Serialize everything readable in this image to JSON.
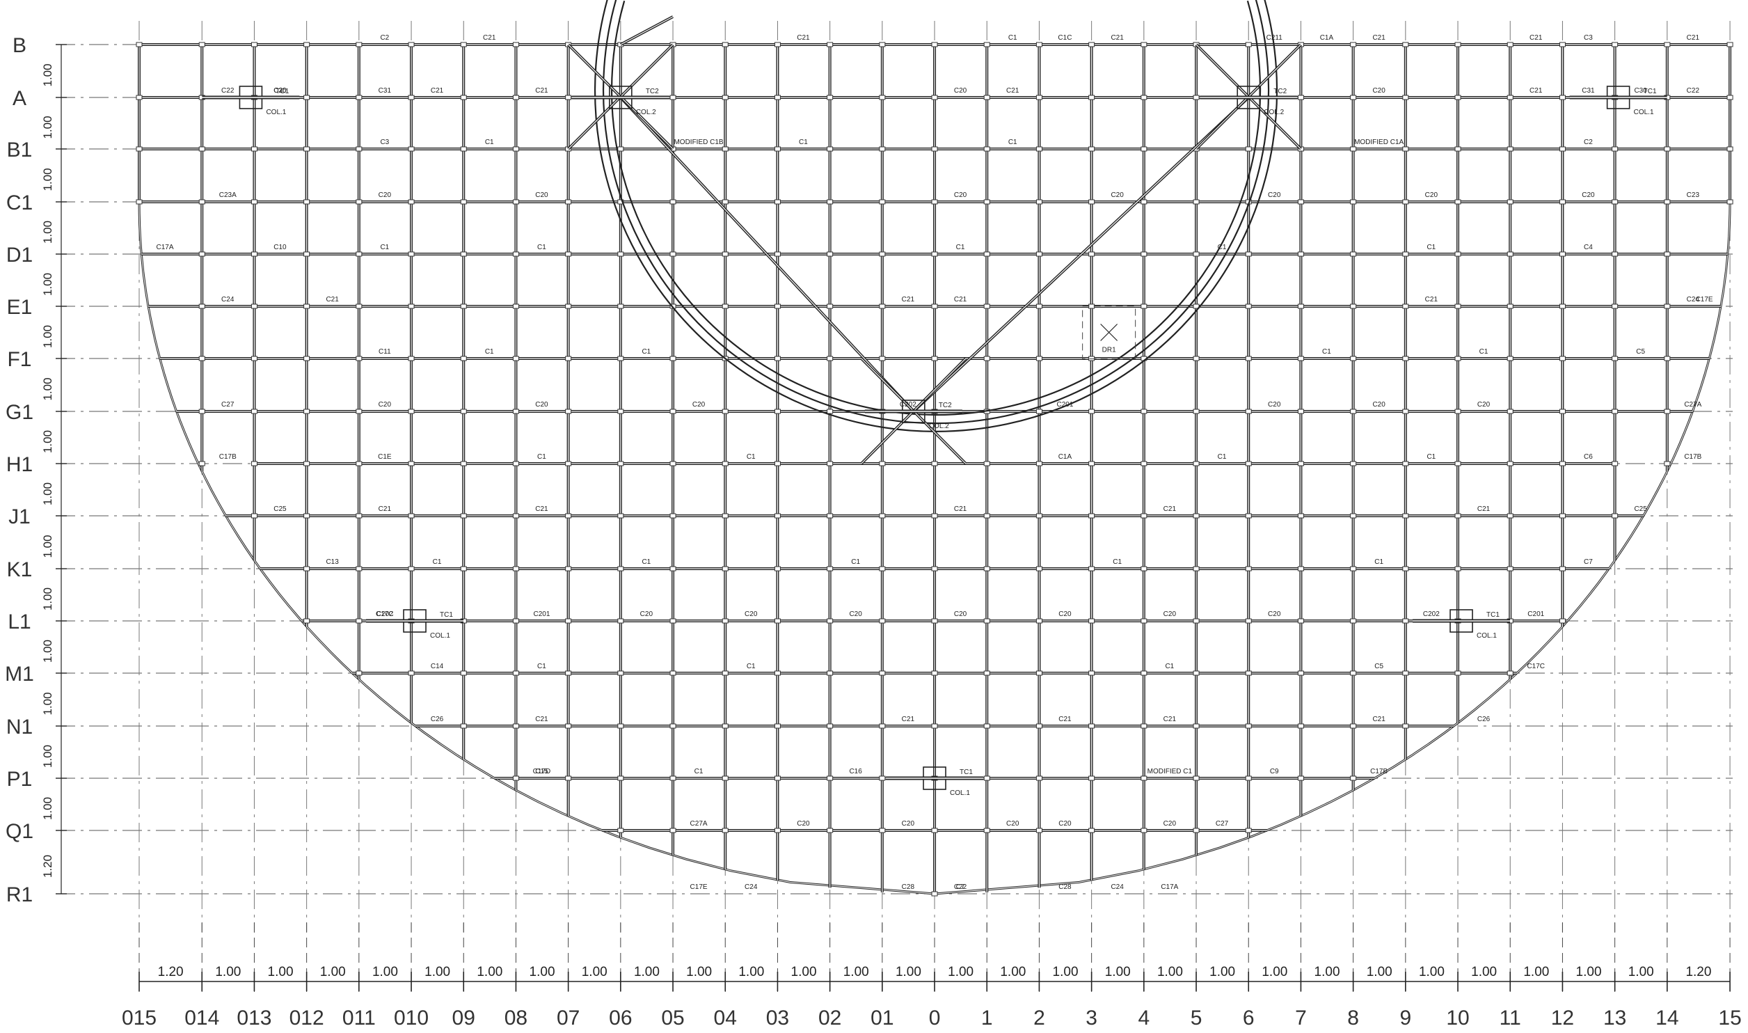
{
  "drawing": {
    "row_labels": [
      "B",
      "A",
      "B1",
      "C1",
      "D1",
      "E1",
      "F1",
      "G1",
      "H1",
      "J1",
      "K1",
      "L1",
      "M1",
      "N1",
      "P1",
      "Q1",
      "R1"
    ],
    "row_spacings": [
      "1.00",
      "1.00",
      "1.00",
      "1.00",
      "1.00",
      "1.00",
      "1.00",
      "1.00",
      "1.00",
      "1.00",
      "1.00",
      "1.00",
      "1.00",
      "1.00",
      "1.00",
      "1.20"
    ],
    "col_labels": [
      "015",
      "014",
      "013",
      "012",
      "011",
      "010",
      "09",
      "08",
      "07",
      "06",
      "05",
      "04",
      "03",
      "02",
      "01",
      "0",
      "1",
      "2",
      "3",
      "4",
      "5",
      "6",
      "7",
      "8",
      "9",
      "10",
      "11",
      "12",
      "13",
      "14",
      "15"
    ],
    "col_spacings": [
      "1.20",
      "1.00",
      "1.00",
      "1.00",
      "1.00",
      "1.00",
      "1.00",
      "1.00",
      "1.00",
      "1.00",
      "1.00",
      "1.00",
      "1.00",
      "1.00",
      "1.00",
      "1.00",
      "1.00",
      "1.00",
      "1.00",
      "1.00",
      "1.00",
      "1.00",
      "1.00",
      "1.00",
      "1.00",
      "1.00",
      "1.00",
      "1.00",
      "1.00",
      "1.20"
    ],
    "columns_marked": [
      {
        "label": "COL.1",
        "tag": "TC1"
      },
      {
        "label": "COL.2",
        "tag": "TC2"
      }
    ],
    "drop_marker": "DR1",
    "member_labels": [
      {
        "text": "C21",
        "row": "B",
        "col": "03"
      },
      {
        "text": "C21",
        "row": "B",
        "col": "09"
      },
      {
        "text": "C1",
        "row": "B",
        "col": "1"
      },
      {
        "text": "C1C",
        "row": "B",
        "col": "2"
      },
      {
        "text": "C21",
        "row": "B",
        "col": "3"
      },
      {
        "text": "C211",
        "row": "B",
        "col": "6"
      },
      {
        "text": "C1A",
        "row": "B",
        "col": "7"
      },
      {
        "text": "C21",
        "row": "B",
        "col": "8"
      },
      {
        "text": "C21",
        "row": "B",
        "col": "11"
      },
      {
        "text": "C3",
        "row": "B",
        "col": "12"
      },
      {
        "text": "C21",
        "row": "B",
        "col": "14"
      },
      {
        "text": "C2",
        "row": "B",
        "col": "011"
      },
      {
        "text": "C20",
        "row": "A",
        "col": "013"
      },
      {
        "text": "C22",
        "row": "A",
        "col": "014"
      },
      {
        "text": "C30",
        "row": "A",
        "col": "013"
      },
      {
        "text": "C31",
        "row": "A",
        "col": "011"
      },
      {
        "text": "C21",
        "row": "A",
        "col": "010"
      },
      {
        "text": "C21",
        "row": "A",
        "col": "08"
      },
      {
        "text": "C20",
        "row": "A",
        "col": "0"
      },
      {
        "text": "C21",
        "row": "A",
        "col": "1"
      },
      {
        "text": "C20",
        "row": "A",
        "col": "8"
      },
      {
        "text": "C21",
        "row": "A",
        "col": "11"
      },
      {
        "text": "C31",
        "row": "A",
        "col": "12"
      },
      {
        "text": "C30",
        "row": "A",
        "col": "13"
      },
      {
        "text": "C22",
        "row": "A",
        "col": "14"
      },
      {
        "text": "C3",
        "row": "B1",
        "col": "011"
      },
      {
        "text": "C1",
        "row": "B1",
        "col": "09"
      },
      {
        "text": "C1",
        "row": "B1",
        "col": "03"
      },
      {
        "text": "C1",
        "row": "B1",
        "col": "1"
      },
      {
        "text": "C2",
        "row": "B1",
        "col": "12"
      },
      {
        "text": "MODIFIED C1B",
        "row": "B1",
        "col": "05"
      },
      {
        "text": "MODIFIED C1A",
        "row": "B1",
        "col": "8"
      },
      {
        "text": "C23A",
        "row": "C1",
        "col": "014"
      },
      {
        "text": "C20",
        "row": "C1",
        "col": "011"
      },
      {
        "text": "C20",
        "row": "C1",
        "col": "08"
      },
      {
        "text": "C20",
        "row": "C1",
        "col": "0"
      },
      {
        "text": "C20",
        "row": "C1",
        "col": "3"
      },
      {
        "text": "C20",
        "row": "C1",
        "col": "6"
      },
      {
        "text": "C20",
        "row": "C1",
        "col": "9"
      },
      {
        "text": "C20",
        "row": "C1",
        "col": "12"
      },
      {
        "text": "C23",
        "row": "C1",
        "col": "14"
      },
      {
        "text": "C10",
        "row": "D1",
        "col": "013"
      },
      {
        "text": "C1",
        "row": "D1",
        "col": "011"
      },
      {
        "text": "C1",
        "row": "D1",
        "col": "08"
      },
      {
        "text": "C1",
        "row": "D1",
        "col": "0"
      },
      {
        "text": "C1",
        "row": "D1",
        "col": "5"
      },
      {
        "text": "C1",
        "row": "D1",
        "col": "9"
      },
      {
        "text": "C4",
        "row": "D1",
        "col": "12"
      },
      {
        "text": "C24",
        "row": "E1",
        "col": "014"
      },
      {
        "text": "C21",
        "row": "E1",
        "col": "012"
      },
      {
        "text": "C21",
        "row": "E1",
        "col": "01"
      },
      {
        "text": "C21",
        "row": "E1",
        "col": "0"
      },
      {
        "text": "C21",
        "row": "E1",
        "col": "9"
      },
      {
        "text": "C24",
        "row": "E1",
        "col": "14"
      },
      {
        "text": "C11",
        "row": "F1",
        "col": "011"
      },
      {
        "text": "C1",
        "row": "F1",
        "col": "09"
      },
      {
        "text": "C1",
        "row": "F1",
        "col": "06"
      },
      {
        "text": "C1",
        "row": "F1",
        "col": "7"
      },
      {
        "text": "C1",
        "row": "F1",
        "col": "10"
      },
      {
        "text": "C5",
        "row": "F1",
        "col": "13"
      },
      {
        "text": "C27",
        "row": "G1",
        "col": "014"
      },
      {
        "text": "C20",
        "row": "G1",
        "col": "011"
      },
      {
        "text": "C20",
        "row": "G1",
        "col": "08"
      },
      {
        "text": "C20",
        "row": "G1",
        "col": "05"
      },
      {
        "text": "C202",
        "row": "G1",
        "col": "01"
      },
      {
        "text": "C201",
        "row": "G1",
        "col": "2"
      },
      {
        "text": "C20",
        "row": "G1",
        "col": "6"
      },
      {
        "text": "C20",
        "row": "G1",
        "col": "8"
      },
      {
        "text": "C20",
        "row": "G1",
        "col": "10"
      },
      {
        "text": "C27A",
        "row": "G1",
        "col": "14"
      },
      {
        "text": "C1E",
        "row": "H1",
        "col": "011"
      },
      {
        "text": "C1",
        "row": "H1",
        "col": "08"
      },
      {
        "text": "C1",
        "row": "H1",
        "col": "04"
      },
      {
        "text": "C1A",
        "row": "H1",
        "col": "2"
      },
      {
        "text": "C1",
        "row": "H1",
        "col": "5"
      },
      {
        "text": "C1",
        "row": "H1",
        "col": "9"
      },
      {
        "text": "C6",
        "row": "H1",
        "col": "12"
      },
      {
        "text": "C25",
        "row": "J1",
        "col": "013"
      },
      {
        "text": "C21",
        "row": "J1",
        "col": "011"
      },
      {
        "text": "C21",
        "row": "J1",
        "col": "08"
      },
      {
        "text": "C21",
        "row": "J1",
        "col": "0"
      },
      {
        "text": "C21",
        "row": "J1",
        "col": "4"
      },
      {
        "text": "C21",
        "row": "J1",
        "col": "10"
      },
      {
        "text": "C25",
        "row": "J1",
        "col": "13"
      },
      {
        "text": "C13",
        "row": "K1",
        "col": "012"
      },
      {
        "text": "C1",
        "row": "K1",
        "col": "010"
      },
      {
        "text": "C1",
        "row": "K1",
        "col": "06"
      },
      {
        "text": "C1",
        "row": "K1",
        "col": "02"
      },
      {
        "text": "C1",
        "row": "K1",
        "col": "3"
      },
      {
        "text": "C1",
        "row": "K1",
        "col": "8"
      },
      {
        "text": "C7",
        "row": "K1",
        "col": "12"
      },
      {
        "text": "C202",
        "row": "L1",
        "col": "011"
      },
      {
        "text": "C201",
        "row": "L1",
        "col": "08"
      },
      {
        "text": "C20",
        "row": "L1",
        "col": "06"
      },
      {
        "text": "C20",
        "row": "L1",
        "col": "04"
      },
      {
        "text": "C20",
        "row": "L1",
        "col": "02"
      },
      {
        "text": "C20",
        "row": "L1",
        "col": "0"
      },
      {
        "text": "C20",
        "row": "L1",
        "col": "2"
      },
      {
        "text": "C20",
        "row": "L1",
        "col": "4"
      },
      {
        "text": "C20",
        "row": "L1",
        "col": "6"
      },
      {
        "text": "C202",
        "row": "L1",
        "col": "9"
      },
      {
        "text": "C201",
        "row": "L1",
        "col": "11"
      },
      {
        "text": "C14",
        "row": "M1",
        "col": "010"
      },
      {
        "text": "C1",
        "row": "M1",
        "col": "08"
      },
      {
        "text": "C1",
        "row": "M1",
        "col": "04"
      },
      {
        "text": "C1",
        "row": "M1",
        "col": "4"
      },
      {
        "text": "C5",
        "row": "M1",
        "col": "8"
      },
      {
        "text": "C26",
        "row": "N1",
        "col": "010"
      },
      {
        "text": "C21",
        "row": "N1",
        "col": "08"
      },
      {
        "text": "C21",
        "row": "N1",
        "col": "01"
      },
      {
        "text": "C21",
        "row": "N1",
        "col": "2"
      },
      {
        "text": "C21",
        "row": "N1",
        "col": "4"
      },
      {
        "text": "C21",
        "row": "N1",
        "col": "8"
      },
      {
        "text": "C26",
        "row": "N1",
        "col": "10"
      },
      {
        "text": "C15",
        "row": "P1",
        "col": "08"
      },
      {
        "text": "C1",
        "row": "P1",
        "col": "05"
      },
      {
        "text": "C16",
        "row": "P1",
        "col": "02"
      },
      {
        "text": "MODIFIED C1",
        "row": "P1",
        "col": "4"
      },
      {
        "text": "C9",
        "row": "P1",
        "col": "6"
      },
      {
        "text": "C27A",
        "row": "Q1",
        "col": "05"
      },
      {
        "text": "C20",
        "row": "Q1",
        "col": "03"
      },
      {
        "text": "C20",
        "row": "Q1",
        "col": "01"
      },
      {
        "text": "C20",
        "row": "Q1",
        "col": "1"
      },
      {
        "text": "C20",
        "row": "Q1",
        "col": "2"
      },
      {
        "text": "C20",
        "row": "Q1",
        "col": "4"
      },
      {
        "text": "C27",
        "row": "Q1",
        "col": "5"
      },
      {
        "text": "C24",
        "row": "R1",
        "col": "04"
      },
      {
        "text": "C28",
        "row": "R1",
        "col": "01"
      },
      {
        "text": "C22",
        "row": "R1",
        "col": "0"
      },
      {
        "text": "C28",
        "row": "R1",
        "col": "2"
      },
      {
        "text": "C24",
        "row": "R1",
        "col": "3"
      },
      {
        "text": "C7",
        "row": "R1",
        "col": "0"
      },
      {
        "text": "C17E",
        "row": "R1",
        "col": "05"
      },
      {
        "text": "C17A",
        "row": "R1",
        "col": "4"
      },
      {
        "text": "C17D",
        "row": "P1",
        "col": "08"
      },
      {
        "text": "C17B",
        "row": "P1",
        "col": "8"
      },
      {
        "text": "C17C",
        "row": "L1",
        "col": "011"
      },
      {
        "text": "C17C",
        "row": "M1",
        "col": "11"
      },
      {
        "text": "C17B",
        "row": "H1",
        "col": "014"
      },
      {
        "text": "C17B",
        "row": "H1",
        "col": "14"
      },
      {
        "text": "C17A",
        "row": "D1",
        "col": "015"
      },
      {
        "text": "C17E",
        "row": "E1",
        "col": "15"
      }
    ]
  }
}
